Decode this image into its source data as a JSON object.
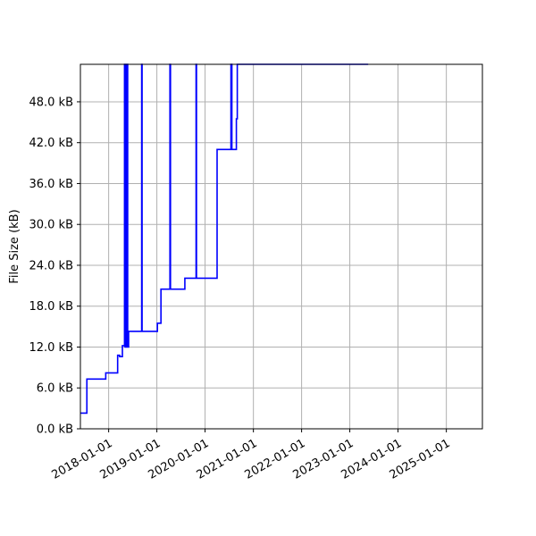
{
  "chart_data": {
    "type": "line",
    "title": "",
    "xlabel": "",
    "ylabel": "File Size (kB)",
    "grid": true,
    "legend": "none",
    "line_color": "#0000ff",
    "grid_color": "#b0b0b0",
    "xlim": [
      "2017-06-01",
      "2025-10-01"
    ],
    "ylim": [
      0,
      53.5
    ],
    "y_ticks": [
      {
        "value": 0,
        "label": "0.0 kB"
      },
      {
        "value": 6,
        "label": "6.0 kB"
      },
      {
        "value": 12,
        "label": "12.0 kB"
      },
      {
        "value": 18,
        "label": "18.0 kB"
      },
      {
        "value": 24,
        "label": "24.0 kB"
      },
      {
        "value": 30,
        "label": "30.0 kB"
      },
      {
        "value": 36,
        "label": "36.0 kB"
      },
      {
        "value": 42,
        "label": "42.0 kB"
      },
      {
        "value": 48,
        "label": "48.0 kB"
      }
    ],
    "x_ticks": [
      {
        "value": "2018-01-01",
        "label": "2018-01-01"
      },
      {
        "value": "2019-01-01",
        "label": "2019-01-01"
      },
      {
        "value": "2020-01-01",
        "label": "2020-01-01"
      },
      {
        "value": "2021-01-01",
        "label": "2021-01-01"
      },
      {
        "value": "2022-01-01",
        "label": "2022-01-01"
      },
      {
        "value": "2023-01-01",
        "label": "2023-01-01"
      },
      {
        "value": "2024-01-01",
        "label": "2024-01-01"
      },
      {
        "value": "2025-01-01",
        "label": "2025-01-01"
      }
    ],
    "series": [
      {
        "points": [
          [
            "2017-06-01",
            2.3
          ],
          [
            "2017-07-20",
            2.3
          ],
          [
            "2017-07-20",
            7.3
          ],
          [
            "2017-12-10",
            7.3
          ],
          [
            "2017-12-10",
            8.2
          ],
          [
            "2018-03-10",
            8.2
          ],
          [
            "2018-03-10",
            10.8
          ],
          [
            "2018-03-25",
            10.8
          ],
          [
            "2018-03-25",
            10.6
          ],
          [
            "2018-04-15",
            10.6
          ],
          [
            "2018-04-15",
            12.2
          ],
          [
            "2018-05-01",
            12.2
          ],
          [
            "2018-05-01",
            53.5
          ],
          [
            "2018-05-05",
            53.5
          ],
          [
            "2018-05-05",
            12.0
          ],
          [
            "2018-05-10",
            12.0
          ],
          [
            "2018-05-10",
            53.5
          ],
          [
            "2018-05-15",
            53.5
          ],
          [
            "2018-05-15",
            12.0
          ],
          [
            "2018-05-20",
            12.0
          ],
          [
            "2018-05-20",
            53.5
          ],
          [
            "2018-05-25",
            53.5
          ],
          [
            "2018-05-25",
            12.0
          ],
          [
            "2018-06-01",
            12.0
          ],
          [
            "2018-06-01",
            14.3
          ],
          [
            "2018-09-08",
            14.3
          ],
          [
            "2018-09-08",
            53.5
          ],
          [
            "2018-09-11",
            53.5
          ],
          [
            "2018-09-11",
            14.3
          ],
          [
            "2019-01-05",
            14.3
          ],
          [
            "2019-01-05",
            15.5
          ],
          [
            "2019-02-01",
            15.5
          ],
          [
            "2019-02-01",
            20.5
          ],
          [
            "2019-04-10",
            20.5
          ],
          [
            "2019-04-10",
            53.5
          ],
          [
            "2019-04-14",
            53.5
          ],
          [
            "2019-04-14",
            20.5
          ],
          [
            "2019-08-01",
            20.5
          ],
          [
            "2019-08-01",
            22.1
          ],
          [
            "2019-10-25",
            22.1
          ],
          [
            "2019-10-25",
            53.5
          ],
          [
            "2019-10-28",
            53.5
          ],
          [
            "2019-10-28",
            22.1
          ],
          [
            "2020-04-01",
            22.1
          ],
          [
            "2020-04-01",
            41.0
          ],
          [
            "2020-07-15",
            41.0
          ],
          [
            "2020-07-15",
            53.5
          ],
          [
            "2020-07-22",
            53.5
          ],
          [
            "2020-07-22",
            41.0
          ],
          [
            "2020-08-25",
            41.0
          ],
          [
            "2020-08-25",
            45.5
          ],
          [
            "2020-09-01",
            45.5
          ],
          [
            "2020-09-01",
            53.5
          ],
          [
            "2023-05-20",
            53.5
          ]
        ]
      }
    ]
  }
}
